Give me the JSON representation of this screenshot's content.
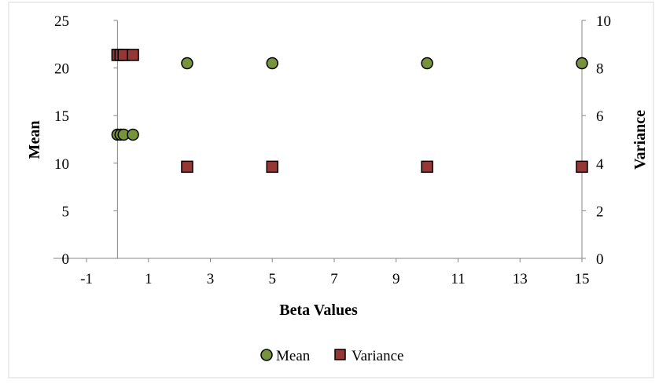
{
  "chart_data": {
    "type": "scatter",
    "title": "",
    "xlabel": "Beta Values",
    "ylabel_left": "Mean",
    "ylabel_right": "Variance",
    "xlim": [
      -1,
      15
    ],
    "ylim_left": [
      0,
      25
    ],
    "ylim_right": [
      0,
      10
    ],
    "x_ticks": [
      "-1",
      "1",
      "3",
      "5",
      "7",
      "9",
      "11",
      "13",
      "15"
    ],
    "y_left_ticks": [
      "0",
      "5",
      "10",
      "15",
      "20",
      "25"
    ],
    "y_right_ticks": [
      "0",
      "2",
      "4",
      "6",
      "8",
      "10"
    ],
    "grid": false,
    "legend_position": "bottom",
    "series": [
      {
        "name": "Mean",
        "axis": "left",
        "marker": "circle",
        "color": "#77933c",
        "x": [
          0,
          0.1,
          0.2,
          0.5,
          2.25,
          5,
          10,
          15
        ],
        "y": [
          13,
          13,
          13,
          13,
          20.5,
          20.5,
          20.5,
          20.5
        ]
      },
      {
        "name": "Variance",
        "axis": "right",
        "marker": "square",
        "color": "#953735",
        "x": [
          0,
          0.1,
          0.2,
          0.5,
          2.25,
          5,
          10,
          15
        ],
        "y": [
          8.55,
          8.55,
          8.55,
          8.55,
          3.85,
          3.85,
          3.85,
          3.85
        ]
      }
    ]
  }
}
